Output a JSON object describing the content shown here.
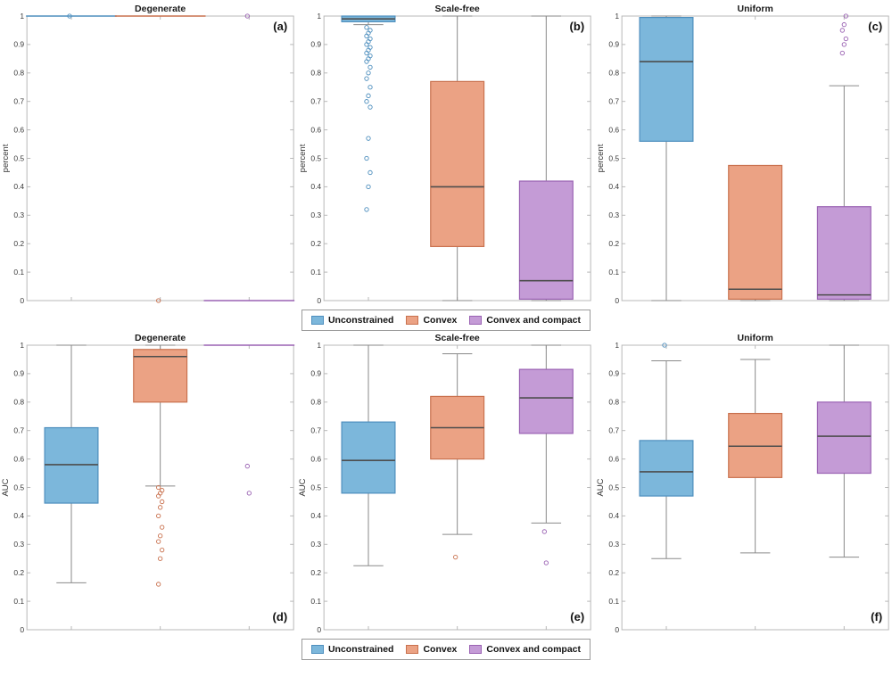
{
  "legend": {
    "items": [
      {
        "label": "Unconstrained",
        "color": "#7CB7DB",
        "edge": "#4E8FBE"
      },
      {
        "label": "Convex",
        "color": "#EBA284",
        "edge": "#C9714E"
      },
      {
        "label": "Convex and compact",
        "color": "#C49BD6",
        "edge": "#9A62B3"
      }
    ]
  },
  "chart_data": {
    "type": "boxplot",
    "ylim": [
      0,
      1
    ],
    "yticks": [
      0,
      0.1,
      0.2,
      0.3,
      0.4,
      0.5,
      0.6,
      0.7,
      0.8,
      0.9,
      1
    ],
    "groups": [
      "Unconstrained",
      "Convex",
      "Convex and compact"
    ],
    "grid": false,
    "legend_position": "below each row, centered",
    "rows": [
      {
        "ylabel": "percent",
        "panels": [
          {
            "letter": "(a)",
            "title": "Degenerate",
            "boxes": [
              {
                "group": "Unconstrained",
                "whislo": 1,
                "q1": 1,
                "med": 1,
                "q3": 1,
                "whishi": 1,
                "fliers": [
                  1
                ]
              },
              {
                "group": "Convex",
                "whislo": 1,
                "q1": 1,
                "med": 1,
                "q3": 1,
                "whishi": 1,
                "fliers": [
                  0
                ]
              },
              {
                "group": "Convex and compact",
                "whislo": 0,
                "q1": 0,
                "med": 0,
                "q3": 0,
                "whishi": 0,
                "fliers": [
                  1
                ]
              }
            ]
          },
          {
            "letter": "(b)",
            "title": "Scale-free",
            "boxes": [
              {
                "group": "Unconstrained",
                "whislo": 0.97,
                "q1": 0.98,
                "med": 0.99,
                "q3": 1,
                "whishi": 1,
                "fliers": [
                  0.32,
                  0.4,
                  0.45,
                  0.5,
                  0.57,
                  0.68,
                  0.7,
                  0.72,
                  0.75,
                  0.78,
                  0.8,
                  0.82,
                  0.84,
                  0.85,
                  0.86,
                  0.87,
                  0.88,
                  0.89,
                  0.9,
                  0.91,
                  0.92,
                  0.93,
                  0.94,
                  0.95,
                  0.96
                ]
              },
              {
                "group": "Convex",
                "whislo": 0,
                "q1": 0.19,
                "med": 0.4,
                "q3": 0.77,
                "whishi": 1,
                "fliers": []
              },
              {
                "group": "Convex and compact",
                "whislo": 0,
                "q1": 0.005,
                "med": 0.07,
                "q3": 0.42,
                "whishi": 1,
                "fliers": []
              }
            ]
          },
          {
            "letter": "(c)",
            "title": "Uniform",
            "boxes": [
              {
                "group": "Unconstrained",
                "whislo": 0,
                "q1": 0.56,
                "med": 0.84,
                "q3": 0.995,
                "whishi": 1,
                "fliers": []
              },
              {
                "group": "Convex",
                "whislo": 0,
                "q1": 0.005,
                "med": 0.04,
                "q3": 0.475,
                "whishi": 0.475,
                "fliers": []
              },
              {
                "group": "Convex and compact",
                "whislo": 0,
                "q1": 0.005,
                "med": 0.02,
                "q3": 0.33,
                "whishi": 0.755,
                "fliers": [
                  0.87,
                  0.9,
                  0.92,
                  0.95,
                  0.97,
                  1
                ]
              }
            ]
          }
        ]
      },
      {
        "ylabel": "AUC",
        "panels": [
          {
            "letter": "(d)",
            "title": "Degenerate",
            "boxes": [
              {
                "group": "Unconstrained",
                "whislo": 0.165,
                "q1": 0.445,
                "med": 0.58,
                "q3": 0.71,
                "whishi": 1,
                "fliers": []
              },
              {
                "group": "Convex",
                "whislo": 0.505,
                "q1": 0.8,
                "med": 0.96,
                "q3": 0.985,
                "whishi": 1,
                "fliers": [
                  0.16,
                  0.25,
                  0.28,
                  0.31,
                  0.33,
                  0.36,
                  0.4,
                  0.43,
                  0.45,
                  0.47,
                  0.48,
                  0.49,
                  0.5
                ]
              },
              {
                "group": "Convex and compact",
                "whislo": 1,
                "q1": 1,
                "med": 1,
                "q3": 1,
                "whishi": 1,
                "fliers": [
                  0.575,
                  0.48
                ]
              }
            ]
          },
          {
            "letter": "(e)",
            "title": "Scale-free",
            "boxes": [
              {
                "group": "Unconstrained",
                "whislo": 0.225,
                "q1": 0.48,
                "med": 0.595,
                "q3": 0.73,
                "whishi": 1,
                "fliers": []
              },
              {
                "group": "Convex",
                "whislo": 0.335,
                "q1": 0.6,
                "med": 0.71,
                "q3": 0.82,
                "whishi": 0.97,
                "fliers": [
                  0.255
                ]
              },
              {
                "group": "Convex and compact",
                "whislo": 0.375,
                "q1": 0.69,
                "med": 0.815,
                "q3": 0.915,
                "whishi": 1,
                "fliers": [
                  0.345,
                  0.235
                ]
              }
            ]
          },
          {
            "letter": "(f)",
            "title": "Uniform",
            "boxes": [
              {
                "group": "Unconstrained",
                "whislo": 0.25,
                "q1": 0.47,
                "med": 0.555,
                "q3": 0.665,
                "whishi": 0.945,
                "fliers": [
                  1
                ]
              },
              {
                "group": "Convex",
                "whislo": 0.27,
                "q1": 0.535,
                "med": 0.645,
                "q3": 0.76,
                "whishi": 0.95,
                "fliers": []
              },
              {
                "group": "Convex and compact",
                "whislo": 0.255,
                "q1": 0.55,
                "med": 0.68,
                "q3": 0.8,
                "whishi": 1,
                "fliers": []
              }
            ]
          }
        ]
      }
    ]
  }
}
